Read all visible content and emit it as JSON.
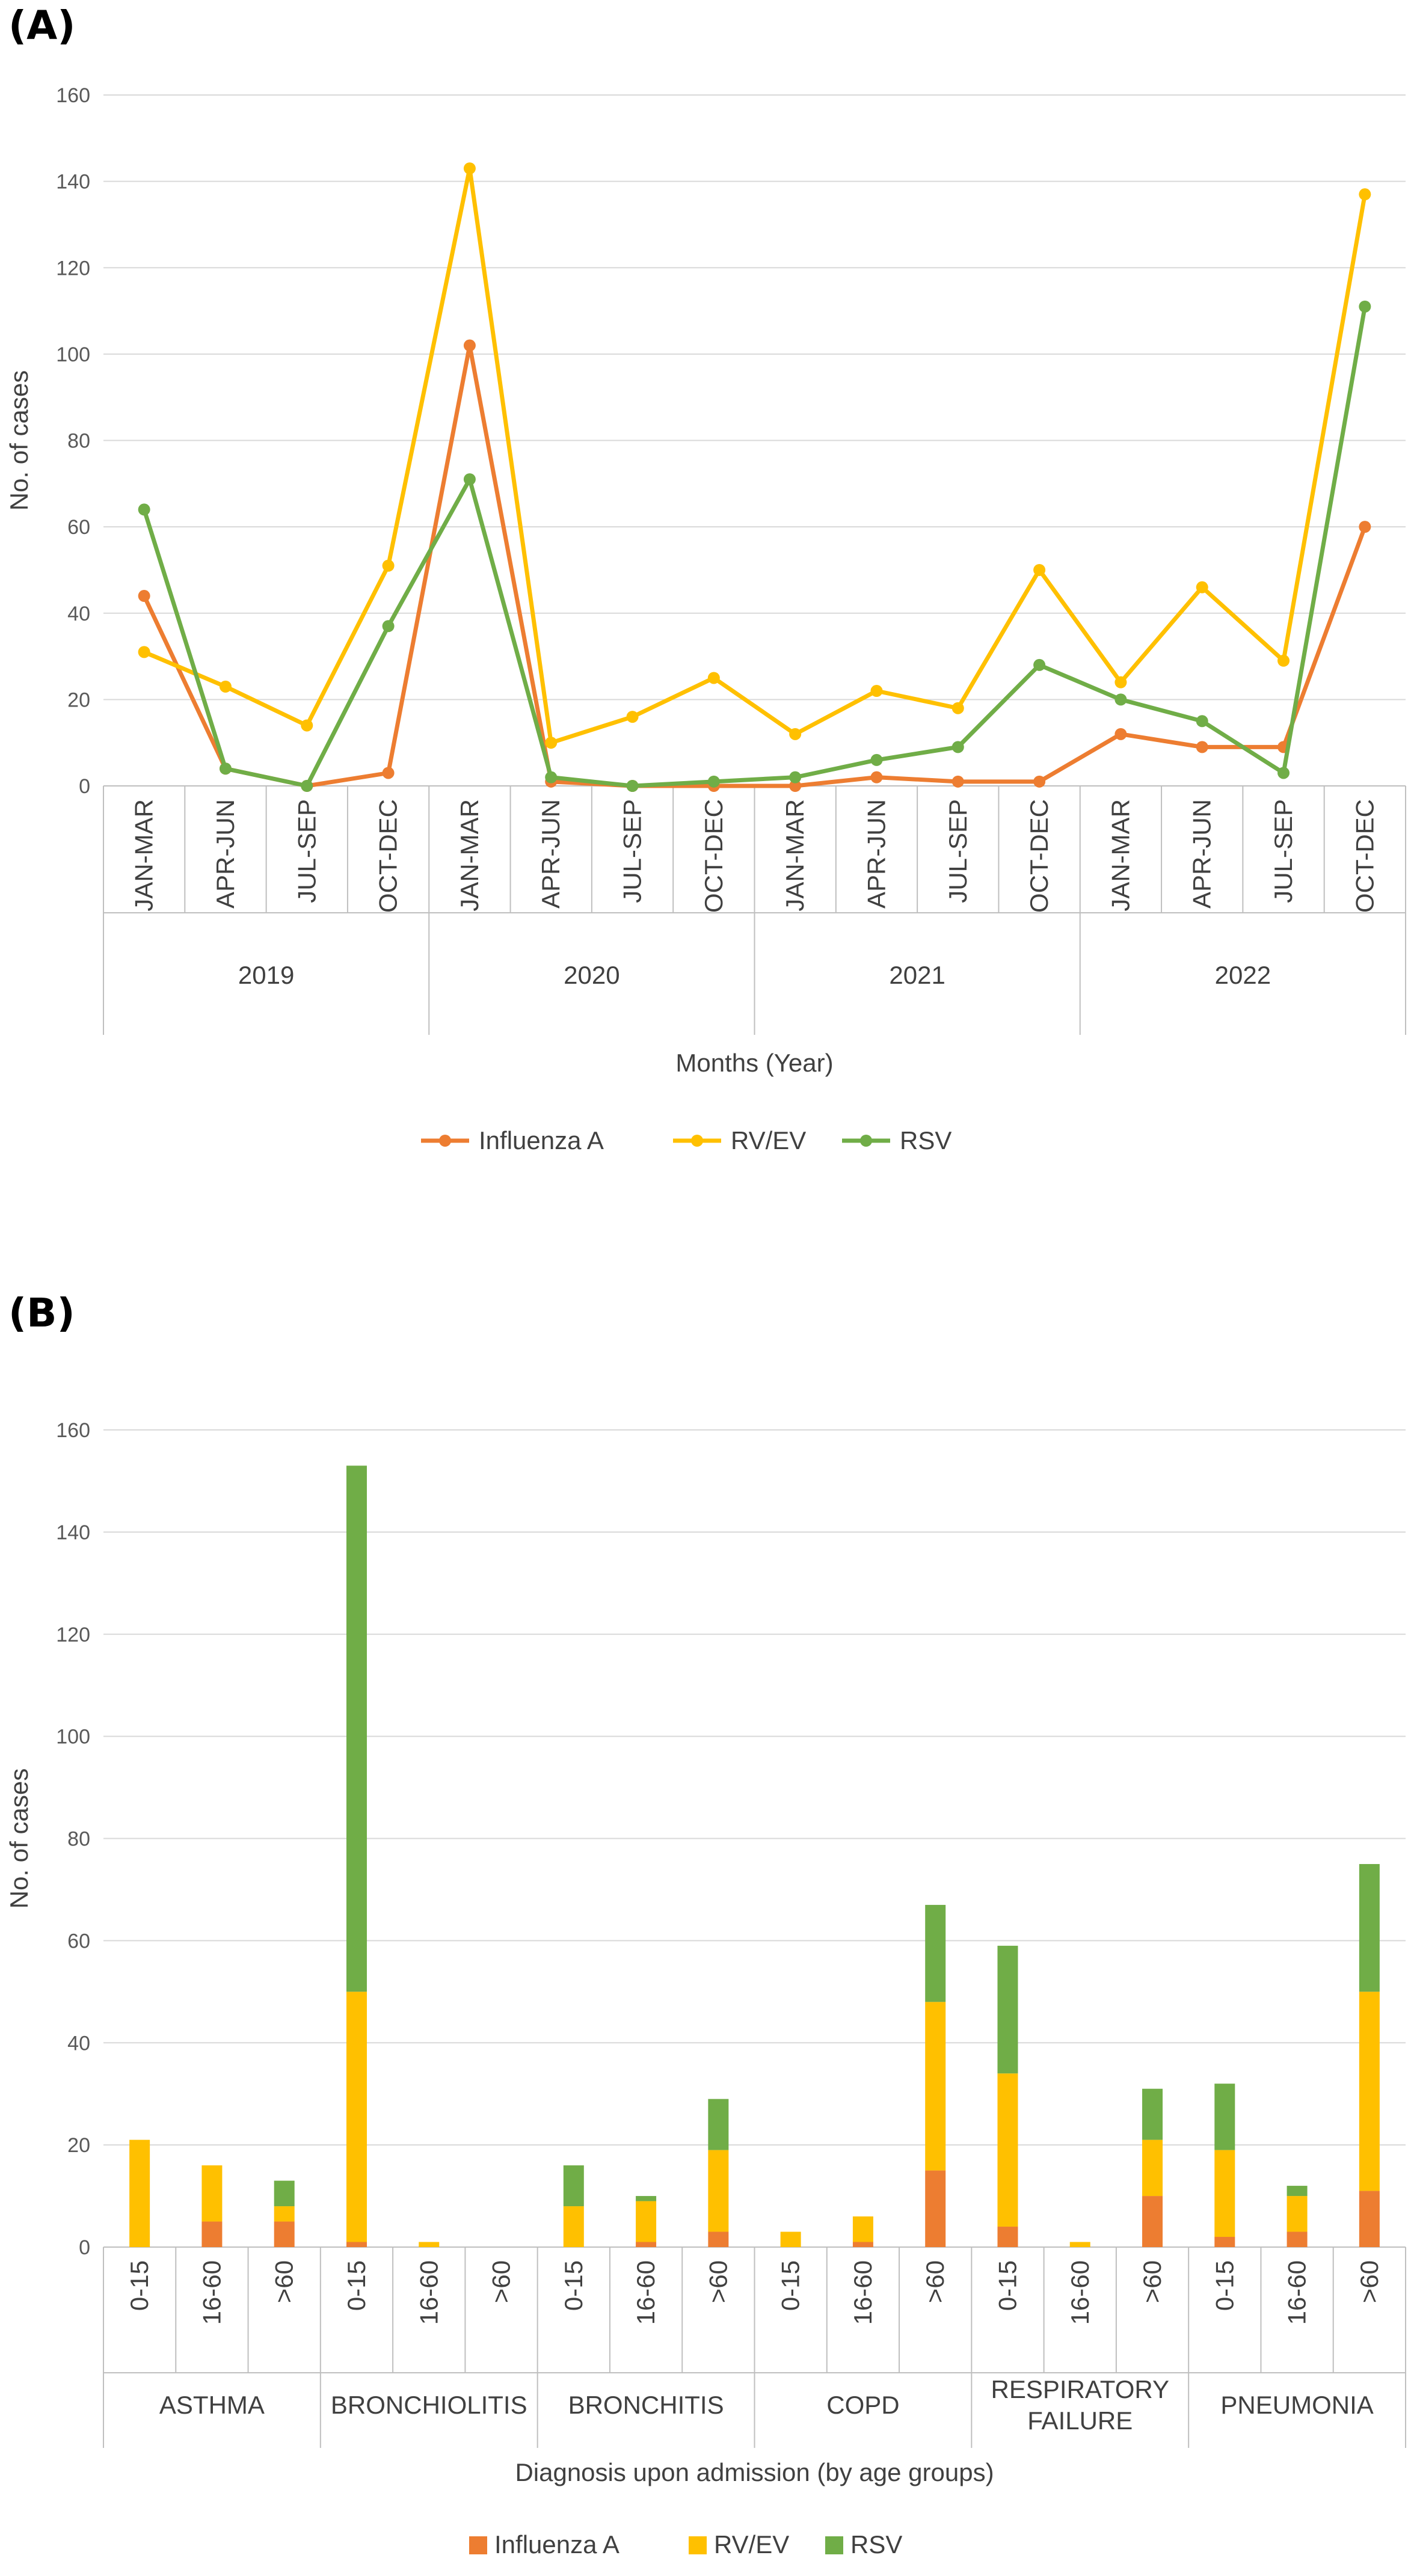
{
  "panels": {
    "a_label": "(A)",
    "b_label": "(B)"
  },
  "colors": {
    "influenza_a": "#ED7D31",
    "rv_ev": "#FFC000",
    "rsv": "#70AD47",
    "grid": "#D9D9D9"
  },
  "chart_data": [
    {
      "type": "line",
      "title": "",
      "xlabel": "Months (Year)",
      "ylabel": "No. of cases",
      "ylim": [
        0,
        160
      ],
      "yticks": [
        0,
        20,
        40,
        60,
        80,
        100,
        120,
        140,
        160
      ],
      "groups": [
        {
          "label": "2019",
          "categories": [
            "JAN-MAR",
            "APR-JUN",
            "JUL-SEP",
            "OCT-DEC"
          ]
        },
        {
          "label": "2020",
          "categories": [
            "JAN-MAR",
            "APR-JUN",
            "JUL-SEP",
            "OCT-DEC"
          ]
        },
        {
          "label": "2021",
          "categories": [
            "JAN-MAR",
            "APR-JUN",
            "JUL-SEP",
            "OCT-DEC"
          ]
        },
        {
          "label": "2022",
          "categories": [
            "JAN-MAR",
            "APR-JUN",
            "JUL-SEP",
            "OCT-DEC"
          ]
        }
      ],
      "series": [
        {
          "name": "Influenza A",
          "color": "#ED7D31",
          "values": [
            44,
            4,
            0,
            3,
            102,
            1,
            0,
            0,
            0,
            2,
            1,
            1,
            12,
            9,
            9,
            60
          ]
        },
        {
          "name": "RV/EV",
          "color": "#FFC000",
          "values": [
            31,
            23,
            14,
            51,
            143,
            10,
            16,
            25,
            12,
            22,
            18,
            50,
            24,
            46,
            29,
            137
          ]
        },
        {
          "name": "RSV",
          "color": "#70AD47",
          "values": [
            64,
            4,
            0,
            37,
            71,
            2,
            0,
            1,
            2,
            6,
            9,
            28,
            20,
            15,
            3,
            111
          ]
        }
      ],
      "grid": true,
      "legend": "bottom"
    },
    {
      "type": "bar",
      "stacked": true,
      "title": "",
      "xlabel": "Diagnosis upon admission (by age groups)",
      "ylabel": "No. of cases",
      "ylim": [
        0,
        160
      ],
      "yticks": [
        0,
        20,
        40,
        60,
        80,
        100,
        120,
        140,
        160
      ],
      "groups": [
        {
          "label": "ASTHMA",
          "categories": [
            "0-15",
            "16-60",
            ">60"
          ]
        },
        {
          "label": "BRONCHIOLITIS",
          "categories": [
            "0-15",
            "16-60",
            ">60"
          ]
        },
        {
          "label": "BRONCHITIS",
          "categories": [
            "0-15",
            "16-60",
            ">60"
          ]
        },
        {
          "label": "COPD",
          "categories": [
            "0-15",
            "16-60",
            ">60"
          ]
        },
        {
          "label": "RESPIRATORY FAILURE",
          "categories": [
            "0-15",
            "16-60",
            ">60"
          ]
        },
        {
          "label": "PNEUMONIA",
          "categories": [
            "0-15",
            "16-60",
            ">60"
          ]
        }
      ],
      "series": [
        {
          "name": "Influenza A",
          "color": "#ED7D31",
          "values": [
            0,
            5,
            5,
            1,
            0,
            0,
            0,
            1,
            3,
            0,
            1,
            15,
            4,
            0,
            10,
            2,
            3,
            11
          ]
        },
        {
          "name": "RV/EV",
          "color": "#FFC000",
          "values": [
            21,
            11,
            3,
            49,
            1,
            0,
            8,
            8,
            16,
            3,
            5,
            33,
            30,
            1,
            11,
            17,
            7,
            39
          ]
        },
        {
          "name": "RSV",
          "color": "#70AD47",
          "values": [
            0,
            0,
            5,
            103,
            0,
            0,
            8,
            1,
            10,
            0,
            0,
            19,
            25,
            0,
            10,
            13,
            2,
            25
          ]
        }
      ],
      "grid": true,
      "legend": "bottom"
    }
  ]
}
